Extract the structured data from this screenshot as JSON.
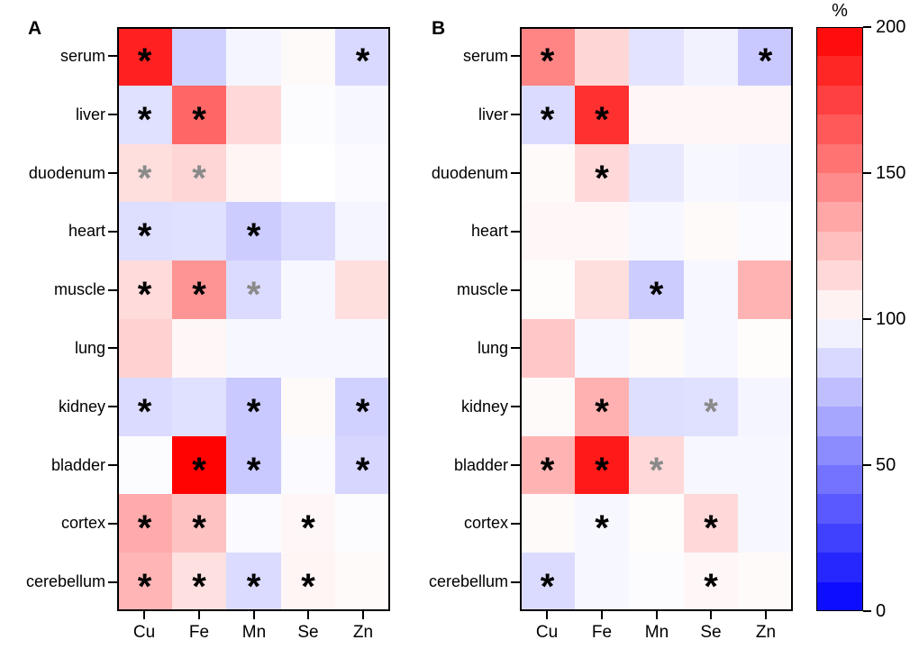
{
  "styles": {
    "star_black": "#000000",
    "star_gray": "#8a8a8a",
    "frame_color": "#000000"
  },
  "chart_data": [
    {
      "type": "heatmap",
      "panel_label": "A",
      "unit": "%",
      "rows": [
        "serum",
        "liver",
        "duodenum",
        "heart",
        "muscle",
        "lung",
        "kidney",
        "bladder",
        "cortex",
        "cerebellum"
      ],
      "columns": [
        "Cu",
        "Fe",
        "Mn",
        "Se",
        "Zn"
      ],
      "values": [
        [
          187,
          82,
          96,
          102,
          85
        ],
        [
          88,
          160,
          115,
          99,
          97
        ],
        [
          113,
          116,
          104,
          100,
          98
        ],
        [
          87,
          88,
          80,
          86,
          96
        ],
        [
          114,
          142,
          86,
          97,
          113
        ],
        [
          118,
          103,
          97,
          97,
          97
        ],
        [
          86,
          88,
          79,
          102,
          82
        ],
        [
          99,
          199,
          79,
          98,
          84
        ],
        [
          133,
          124,
          98,
          103,
          99
        ],
        [
          129,
          112,
          86,
          104,
          102
        ]
      ],
      "significance": [
        [
          "black",
          "",
          "",
          "",
          "black"
        ],
        [
          "black",
          "black",
          "",
          "",
          ""
        ],
        [
          "gray",
          "gray",
          "",
          "",
          ""
        ],
        [
          "black",
          "",
          "black",
          "",
          ""
        ],
        [
          "black",
          "black",
          "gray",
          "",
          ""
        ],
        [
          "",
          "",
          "",
          "",
          ""
        ],
        [
          "black",
          "",
          "black",
          "",
          "black"
        ],
        [
          "",
          "black",
          "black",
          "",
          "black"
        ],
        [
          "black",
          "black",
          "",
          "black",
          ""
        ],
        [
          "black",
          "black",
          "black",
          "black",
          ""
        ]
      ]
    },
    {
      "type": "heatmap",
      "panel_label": "B",
      "unit": "%",
      "rows": [
        "serum",
        "liver",
        "duodenum",
        "heart",
        "muscle",
        "lung",
        "kidney",
        "bladder",
        "cortex",
        "cerebellum"
      ],
      "columns": [
        "Cu",
        "Fe",
        "Mn",
        "Se",
        "Zn"
      ],
      "values": [
        [
          148,
          116,
          89,
          95,
          79
        ],
        [
          86,
          181,
          103,
          103,
          103
        ],
        [
          102,
          115,
          91,
          97,
          96
        ],
        [
          103,
          103,
          97,
          102,
          98
        ],
        [
          101,
          113,
          80,
          97,
          130
        ],
        [
          122,
          97,
          102,
          97,
          101
        ],
        [
          102,
          131,
          87,
          88,
          96
        ],
        [
          130,
          190,
          115,
          97,
          97
        ],
        [
          102,
          97,
          101,
          115,
          97
        ],
        [
          86,
          97,
          99,
          103,
          102
        ]
      ],
      "significance": [
        [
          "black",
          "",
          "",
          "",
          "black"
        ],
        [
          "black",
          "black",
          "",
          "",
          ""
        ],
        [
          "",
          "black",
          "",
          "",
          ""
        ],
        [
          "",
          "",
          "",
          "",
          ""
        ],
        [
          "",
          "",
          "black",
          "",
          ""
        ],
        [
          "",
          "",
          "",
          "",
          ""
        ],
        [
          "",
          "black",
          "",
          "gray",
          ""
        ],
        [
          "black",
          "black",
          "gray",
          "",
          ""
        ],
        [
          "",
          "black",
          "",
          "black",
          ""
        ],
        [
          "black",
          "",
          "",
          "black",
          ""
        ]
      ]
    },
    {
      "type": "colorbar",
      "title": "%",
      "min": 0,
      "max": 200,
      "ticks": [
        200,
        150,
        100,
        50,
        0
      ],
      "segments": 20,
      "colors": {
        "low": "#0000FF",
        "mid": "#FFFFFF",
        "high": "#FF0000"
      }
    }
  ]
}
